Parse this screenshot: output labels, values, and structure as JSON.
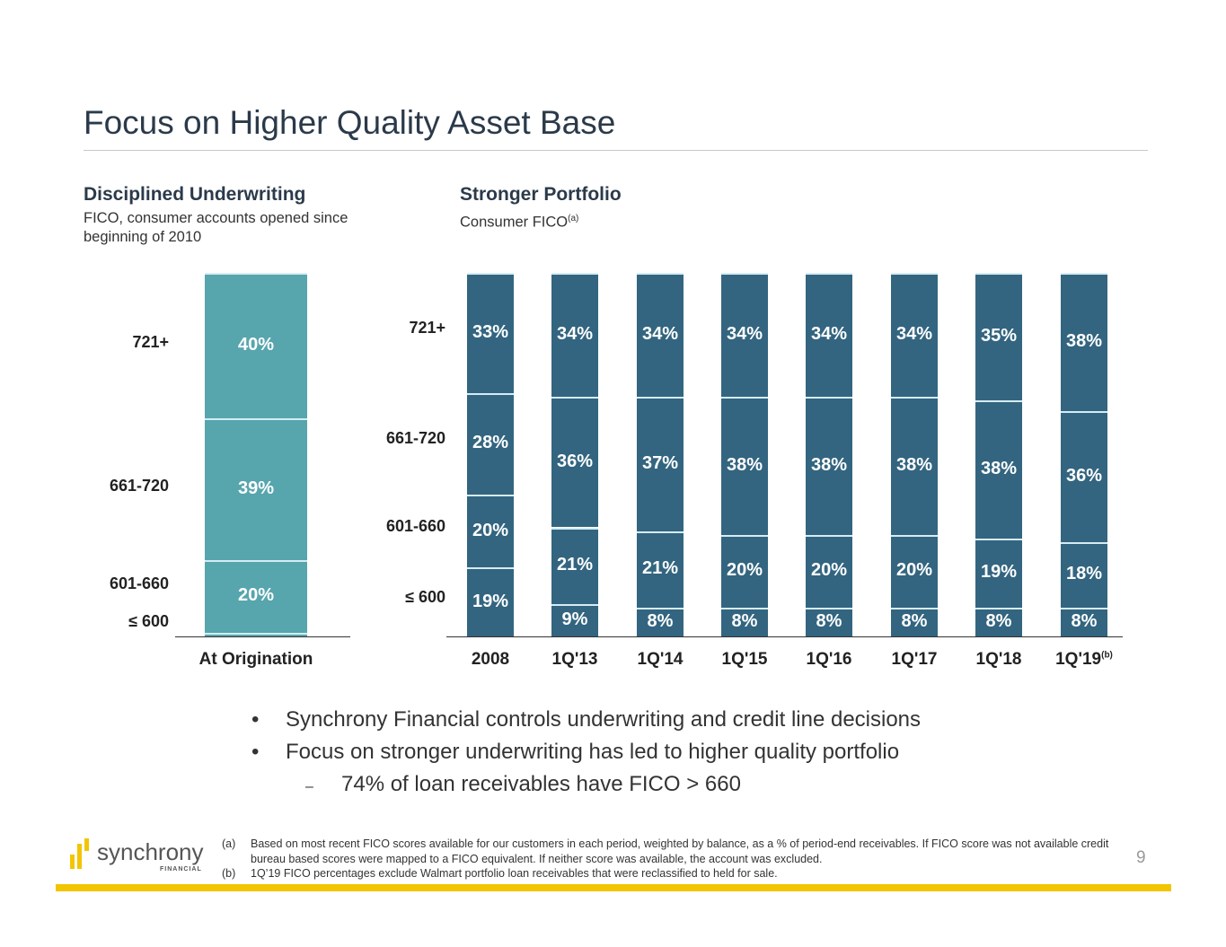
{
  "title": "Focus on Higher Quality Asset Base",
  "colors": {
    "left_bar": "#57a5ad",
    "right_bar": "#336580",
    "separator": "#d6ecf4",
    "accent": "#f2c500"
  },
  "left": {
    "heading": "Disciplined Underwriting",
    "subtitle_line1": "FICO, consumer accounts opened since",
    "subtitle_line2": "beginning of 2010"
  },
  "right": {
    "heading": "Stronger Portfolio",
    "subtitle": "Consumer FICO",
    "subtitle_note": "(a)"
  },
  "chart_data": [
    {
      "type": "bar",
      "stacked": true,
      "title": "Disciplined Underwriting",
      "categories": [
        "At Origination"
      ],
      "bands": [
        "721+",
        "661-720",
        "601-660",
        "≤ 600"
      ],
      "series": [
        {
          "name": "721+",
          "values": [
            40
          ]
        },
        {
          "name": "661-720",
          "values": [
            39
          ]
        },
        {
          "name": "601-660",
          "values": [
            20
          ]
        },
        {
          "name": "≤ 600",
          "values": [
            1
          ]
        }
      ],
      "ylim": [
        0,
        100
      ]
    },
    {
      "type": "bar",
      "stacked": true,
      "title": "Stronger Portfolio",
      "categories": [
        "2008",
        "1Q'13",
        "1Q'14",
        "1Q'15",
        "1Q'16",
        "1Q'17",
        "1Q'18",
        "1Q'19"
      ],
      "category_notes": {
        "1Q'19": "(b)"
      },
      "bands": [
        "721+",
        "661-720",
        "601-660",
        "≤ 600"
      ],
      "series": [
        {
          "name": "721+",
          "values": [
            33,
            34,
            34,
            34,
            34,
            34,
            35,
            38
          ]
        },
        {
          "name": "661-720",
          "values": [
            28,
            36,
            37,
            38,
            38,
            38,
            38,
            36
          ]
        },
        {
          "name": "601-660",
          "values": [
            20,
            21,
            21,
            20,
            20,
            20,
            19,
            18
          ]
        },
        {
          "name": "≤ 600",
          "values": [
            19,
            9,
            8,
            8,
            8,
            8,
            8,
            8
          ]
        }
      ],
      "ylim": [
        0,
        100
      ]
    }
  ],
  "bullets": [
    "Synchrony Financial controls underwriting and credit line decisions",
    "Focus on stronger underwriting has led to higher quality portfolio"
  ],
  "sub_bullet": "74% of loan receivables have FICO > 660",
  "bullet_marker": "•",
  "sub_marker": "–",
  "footnotes": [
    {
      "key": "(a)",
      "text": "Based on most recent FICO scores available for our customers in each period, weighted by balance, as a % of period-end receivables. If FICO score was not available credit bureau based scores were mapped to a FICO equivalent. If neither score was available, the account was excluded."
    },
    {
      "key": "(b)",
      "text": "1Q’19 FICO percentages exclude Walmart portfolio loan receivables that were reclassified to held for sale."
    }
  ],
  "logo": {
    "name": "synchrony",
    "tagline": "FINANCIAL"
  },
  "page_number": "9"
}
